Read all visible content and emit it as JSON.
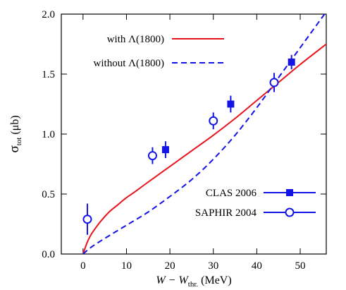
{
  "chart_data": {
    "type": "line",
    "xlabel": {
      "prefix": "W − W",
      "subscript": "thr.",
      "suffix": " (MeV)"
    },
    "ylabel": {
      "main": "σ",
      "subscript": "tot",
      "suffix": " (μb)"
    },
    "xlim": [
      -5,
      56
    ],
    "ylim": [
      0,
      2.0
    ],
    "x_ticks": [
      0,
      10,
      20,
      30,
      40,
      50
    ],
    "x_tick_labels": [
      "0",
      "10",
      "20",
      "30",
      "40",
      "50"
    ],
    "y_ticks": [
      0.0,
      0.5,
      1.0,
      1.5,
      2.0
    ],
    "y_tick_labels": [
      "0.0",
      "0.5",
      "1.0",
      "1.5",
      "2.0"
    ],
    "grid": false,
    "series": [
      {
        "name": "with Λ(1800)",
        "kind": "line",
        "style": "solid",
        "color": "#e8141c",
        "x": [
          0,
          1,
          2,
          4,
          6,
          8,
          10,
          12,
          15,
          20,
          25,
          30,
          35,
          40,
          45,
          50,
          56
        ],
        "y": [
          0,
          0.1,
          0.17,
          0.27,
          0.35,
          0.41,
          0.47,
          0.52,
          0.6,
          0.73,
          0.86,
          0.99,
          1.13,
          1.28,
          1.43,
          1.58,
          1.75
        ]
      },
      {
        "name": "without Λ(1800)",
        "kind": "line",
        "style": "dashed",
        "color": "#1414e6",
        "x": [
          0,
          2,
          5,
          10,
          15,
          20,
          25,
          30,
          35,
          40,
          45,
          50,
          56
        ],
        "y": [
          0,
          0.06,
          0.13,
          0.24,
          0.35,
          0.48,
          0.62,
          0.79,
          0.99,
          1.22,
          1.47,
          1.72,
          2.02
        ]
      },
      {
        "name": "CLAS 2006",
        "kind": "points",
        "marker": "square",
        "color": "#1414e6",
        "x": [
          19,
          34,
          48
        ],
        "y": [
          0.87,
          1.25,
          1.6
        ],
        "err": [
          0.07,
          0.07,
          0.06
        ]
      },
      {
        "name": "SAPHIR 2004",
        "kind": "points",
        "marker": "open-circle",
        "color": "#1414e6",
        "x": [
          1,
          16,
          30,
          44
        ],
        "y": [
          0.29,
          0.82,
          1.11,
          1.43
        ],
        "err": [
          0.13,
          0.07,
          0.07,
          0.08
        ]
      }
    ],
    "legend_top": [
      "with Λ(1800)",
      "without Λ(1800)"
    ],
    "legend_bottom": [
      "CLAS 2006",
      "SAPHIR 2004"
    ],
    "legend_placement": "top-left and bottom-right"
  }
}
